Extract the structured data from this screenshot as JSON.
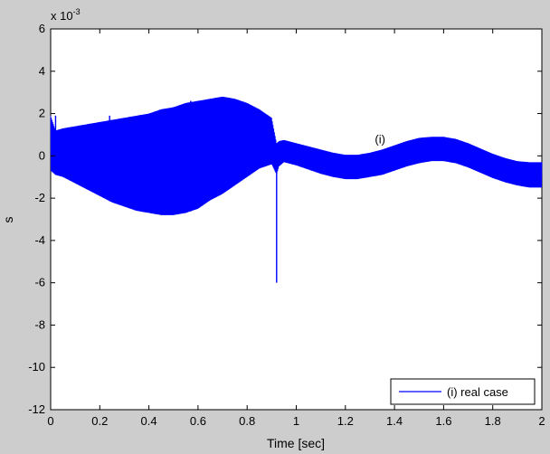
{
  "chart_data": {
    "type": "line",
    "title": "",
    "xlabel": "Time [sec]",
    "ylabel": "s",
    "xlim": [
      0,
      2
    ],
    "ylim": [
      -12,
      6
    ],
    "y_exponent_label": "x 10",
    "y_exponent_power": "-3",
    "x_ticks": [
      0,
      0.2,
      0.4,
      0.6,
      0.8,
      1,
      1.2,
      1.4,
      1.6,
      1.8,
      2
    ],
    "x_tick_labels": [
      "0",
      "0.2",
      "0.4",
      "0.6",
      "0.8",
      "1",
      "1.2",
      "1.4",
      "1.6",
      "1.8",
      "2"
    ],
    "y_ticks": [
      -12,
      -10,
      -8,
      -6,
      -4,
      -2,
      0,
      2,
      4,
      6
    ],
    "y_tick_labels": [
      "-12",
      "-10",
      "-8",
      "-6",
      "-4",
      "-2",
      "0",
      "2",
      "4",
      "6"
    ],
    "grid": false,
    "legend_position": "bottom-right",
    "annotation": {
      "text": "(i)",
      "x": 1.32,
      "y": 0.6
    },
    "series": [
      {
        "name": "(i) real case",
        "color": "#0000ff",
        "envelope": {
          "x": [
            0,
            0.02,
            0.05,
            0.1,
            0.15,
            0.2,
            0.25,
            0.3,
            0.35,
            0.4,
            0.45,
            0.5,
            0.55,
            0.6,
            0.65,
            0.7,
            0.75,
            0.8,
            0.85,
            0.9,
            0.92,
            0.93,
            0.95,
            1.0,
            1.05,
            1.1,
            1.15,
            1.2,
            1.25,
            1.3,
            1.35,
            1.4,
            1.45,
            1.5,
            1.55,
            1.6,
            1.65,
            1.7,
            1.75,
            1.8,
            1.85,
            1.9,
            1.95,
            2.0
          ],
          "upper": [
            1.9,
            1.2,
            1.3,
            1.4,
            1.5,
            1.6,
            1.7,
            1.8,
            1.9,
            2.0,
            2.2,
            2.3,
            2.5,
            2.6,
            2.7,
            2.8,
            2.7,
            2.5,
            2.2,
            1.8,
            0.6,
            0.7,
            0.75,
            0.6,
            0.45,
            0.3,
            0.15,
            0.05,
            0.05,
            0.15,
            0.3,
            0.5,
            0.7,
            0.85,
            0.9,
            0.9,
            0.8,
            0.6,
            0.35,
            0.1,
            -0.1,
            -0.25,
            -0.3,
            -0.3
          ],
          "lower": [
            -0.7,
            -0.9,
            -1.0,
            -1.3,
            -1.6,
            -1.9,
            -2.2,
            -2.4,
            -2.6,
            -2.7,
            -2.8,
            -2.8,
            -2.7,
            -2.5,
            -2.1,
            -1.8,
            -1.4,
            -1.0,
            -0.6,
            -0.4,
            -0.9,
            -0.5,
            -0.3,
            -0.45,
            -0.65,
            -0.85,
            -1.0,
            -1.1,
            -1.1,
            -1.0,
            -0.9,
            -0.7,
            -0.5,
            -0.35,
            -0.25,
            -0.25,
            -0.35,
            -0.55,
            -0.8,
            -1.05,
            -1.25,
            -1.4,
            -1.5,
            -1.5
          ]
        },
        "spikes": [
          {
            "x": 0.02,
            "y": 1.9
          },
          {
            "x": 0.24,
            "y": 1.9
          },
          {
            "x": 0.245,
            "y": -2.0
          },
          {
            "x": 0.57,
            "y": 2.6
          },
          {
            "x": 0.575,
            "y": -2.5
          },
          {
            "x": 0.92,
            "y": -6.0
          }
        ]
      }
    ]
  }
}
